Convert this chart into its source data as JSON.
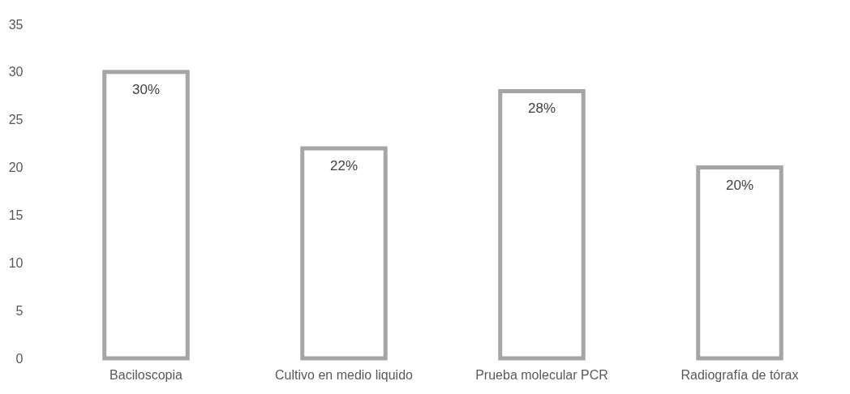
{
  "chart_data": {
    "type": "bar",
    "categories": [
      "Baciloscopia",
      "Cultivo en medio liquido",
      "Prueba molecular PCR",
      "Radiografía de tórax"
    ],
    "values": [
      30,
      22,
      28,
      20
    ],
    "value_labels": [
      "30%",
      "22%",
      "28%",
      "20%"
    ],
    "color": "#a5a5a5",
    "ylim": [
      0,
      35
    ],
    "yticks": [
      0,
      5,
      10,
      15,
      20,
      25,
      30,
      35
    ],
    "grid": false
  }
}
